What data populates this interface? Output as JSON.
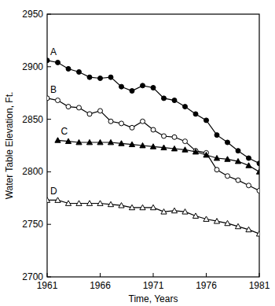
{
  "chart_data": {
    "type": "line",
    "x_label": "Time, Years",
    "y_label": "Water Table Elevation, Ft.",
    "x": [
      1961,
      1962,
      1963,
      1964,
      1965,
      1966,
      1967,
      1968,
      1969,
      1970,
      1971,
      1972,
      1973,
      1974,
      1975,
      1976,
      1977,
      1978,
      1979,
      1980,
      1981
    ],
    "series": [
      {
        "name": "A",
        "color": "#000000",
        "marker": "circle",
        "values": [
          2906,
          2904,
          2898,
          2895,
          2890,
          2889,
          2890,
          2881,
          2877,
          2882,
          2880,
          2870,
          2868,
          2862,
          2855,
          2849,
          2835,
          2828,
          2820,
          2813,
          2808
        ]
      },
      {
        "name": "B",
        "color": "#000000",
        "marker": "open-circle",
        "values": [
          2870,
          2868,
          2862,
          2861,
          2855,
          2858,
          2848,
          2846,
          2842,
          2848,
          2840,
          2834,
          2833,
          2829,
          2820,
          2818,
          2802,
          2796,
          2792,
          2787,
          2782
        ]
      },
      {
        "name": "C",
        "color": "#000000",
        "marker": "triangle",
        "values": [
          null,
          2830,
          2829,
          2828,
          2828,
          2828,
          2828,
          2827,
          2826,
          2825,
          2824,
          2823,
          2822,
          2821,
          2819,
          2816,
          2813,
          2812,
          2810,
          2806,
          2800
        ]
      },
      {
        "name": "D",
        "color": "#000000",
        "marker": "open-triangle",
        "values": [
          2773,
          2773,
          2770,
          2770,
          2770,
          2770,
          2769,
          2768,
          2766,
          2766,
          2766,
          2762,
          2763,
          2762,
          2758,
          2755,
          2753,
          2751,
          2748,
          2745,
          2741
        ]
      }
    ],
    "xlim": [
      1961,
      1981
    ],
    "xticks": [
      1961,
      1966,
      1971,
      1976,
      1981
    ],
    "ylim": [
      2700,
      2950
    ],
    "yticks": [
      2700,
      2750,
      2800,
      2850,
      2900,
      2950
    ],
    "grid": false
  }
}
